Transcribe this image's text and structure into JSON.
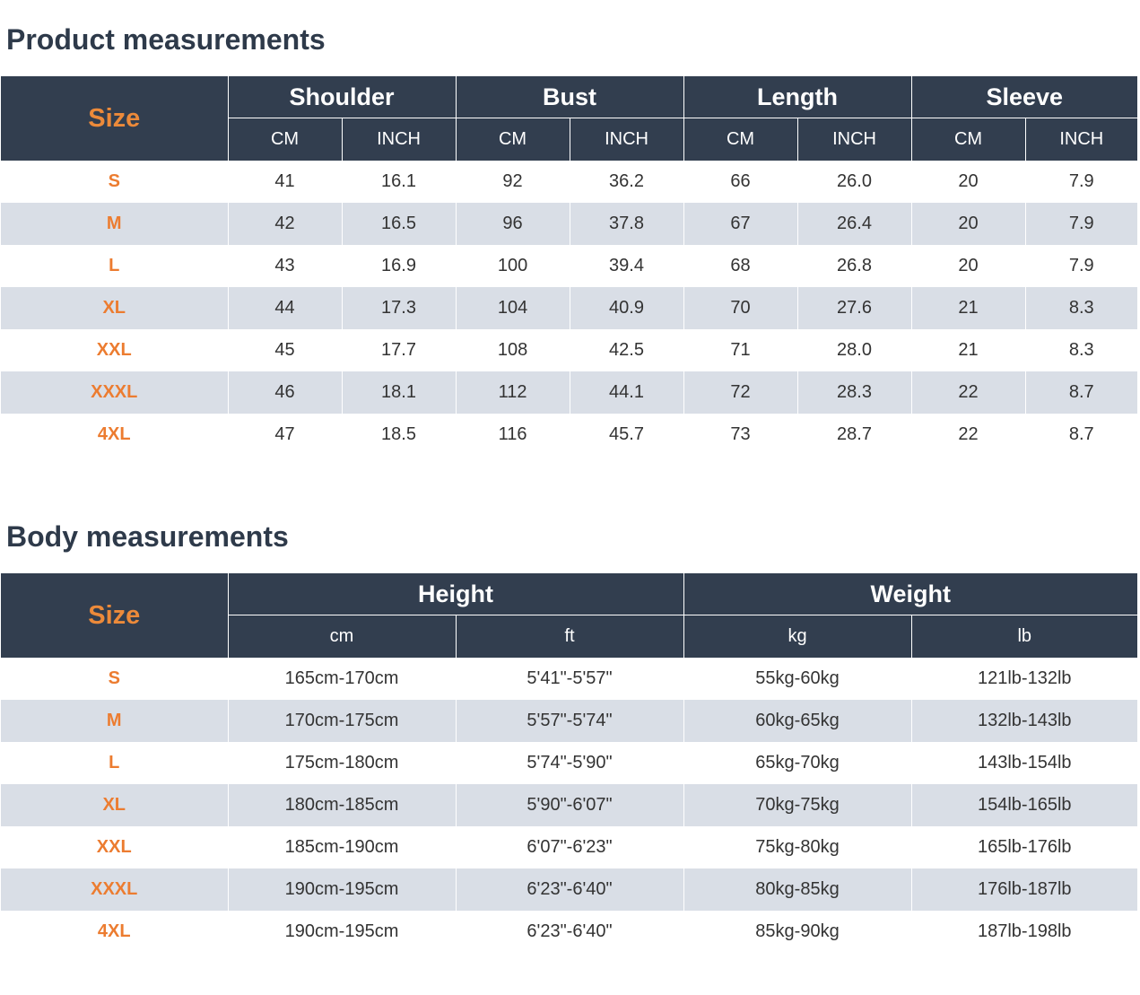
{
  "product": {
    "title": "Product measurements",
    "size_label": "Size",
    "groups": [
      "Shoulder",
      "Bust",
      "Length",
      "Sleeve"
    ],
    "units": [
      "CM",
      "INCH",
      "CM",
      "INCH",
      "CM",
      "INCH",
      "CM",
      "INCH"
    ],
    "rows": [
      {
        "size": "S",
        "values": [
          "41",
          "16.1",
          "92",
          "36.2",
          "66",
          "26.0",
          "20",
          "7.9"
        ]
      },
      {
        "size": "M",
        "values": [
          "42",
          "16.5",
          "96",
          "37.8",
          "67",
          "26.4",
          "20",
          "7.9"
        ]
      },
      {
        "size": "L",
        "values": [
          "43",
          "16.9",
          "100",
          "39.4",
          "68",
          "26.8",
          "20",
          "7.9"
        ]
      },
      {
        "size": "XL",
        "values": [
          "44",
          "17.3",
          "104",
          "40.9",
          "70",
          "27.6",
          "21",
          "8.3"
        ]
      },
      {
        "size": "XXL",
        "values": [
          "45",
          "17.7",
          "108",
          "42.5",
          "71",
          "28.0",
          "21",
          "8.3"
        ]
      },
      {
        "size": "XXXL",
        "values": [
          "46",
          "18.1",
          "112",
          "44.1",
          "72",
          "28.3",
          "22",
          "8.7"
        ]
      },
      {
        "size": "4XL",
        "values": [
          "47",
          "18.5",
          "116",
          "45.7",
          "73",
          "28.7",
          "22",
          "8.7"
        ]
      }
    ]
  },
  "body": {
    "title": "Body measurements",
    "size_label": "Size",
    "groups": [
      "Height",
      "Weight"
    ],
    "units": [
      "cm",
      "ft",
      "kg",
      "lb"
    ],
    "rows": [
      {
        "size": "S",
        "values": [
          "165cm-170cm",
          "5'41\"-5'57\"",
          "55kg-60kg",
          "121lb-132lb"
        ]
      },
      {
        "size": "M",
        "values": [
          "170cm-175cm",
          "5'57\"-5'74\"",
          "60kg-65kg",
          "132lb-143lb"
        ]
      },
      {
        "size": "L",
        "values": [
          "175cm-180cm",
          "5'74\"-5'90\"",
          "65kg-70kg",
          "143lb-154lb"
        ]
      },
      {
        "size": "XL",
        "values": [
          "180cm-185cm",
          "5'90\"-6'07\"",
          "70kg-75kg",
          "154lb-165lb"
        ]
      },
      {
        "size": "XXL",
        "values": [
          "185cm-190cm",
          "6'07\"-6'23\"",
          "75kg-80kg",
          "165lb-176lb"
        ]
      },
      {
        "size": "XXXL",
        "values": [
          "190cm-195cm",
          "6'23\"-6'40\"",
          "80kg-85kg",
          "176lb-187lb"
        ]
      },
      {
        "size": "4XL",
        "values": [
          "190cm-195cm",
          "6'23\"-6'40\"",
          "85kg-90kg",
          "187lb-198lb"
        ]
      }
    ]
  },
  "colors": {
    "header_bg": "#323e4f",
    "accent": "#ec7c30",
    "stripe": "#d9dee6",
    "title": "#2e3a4a"
  }
}
